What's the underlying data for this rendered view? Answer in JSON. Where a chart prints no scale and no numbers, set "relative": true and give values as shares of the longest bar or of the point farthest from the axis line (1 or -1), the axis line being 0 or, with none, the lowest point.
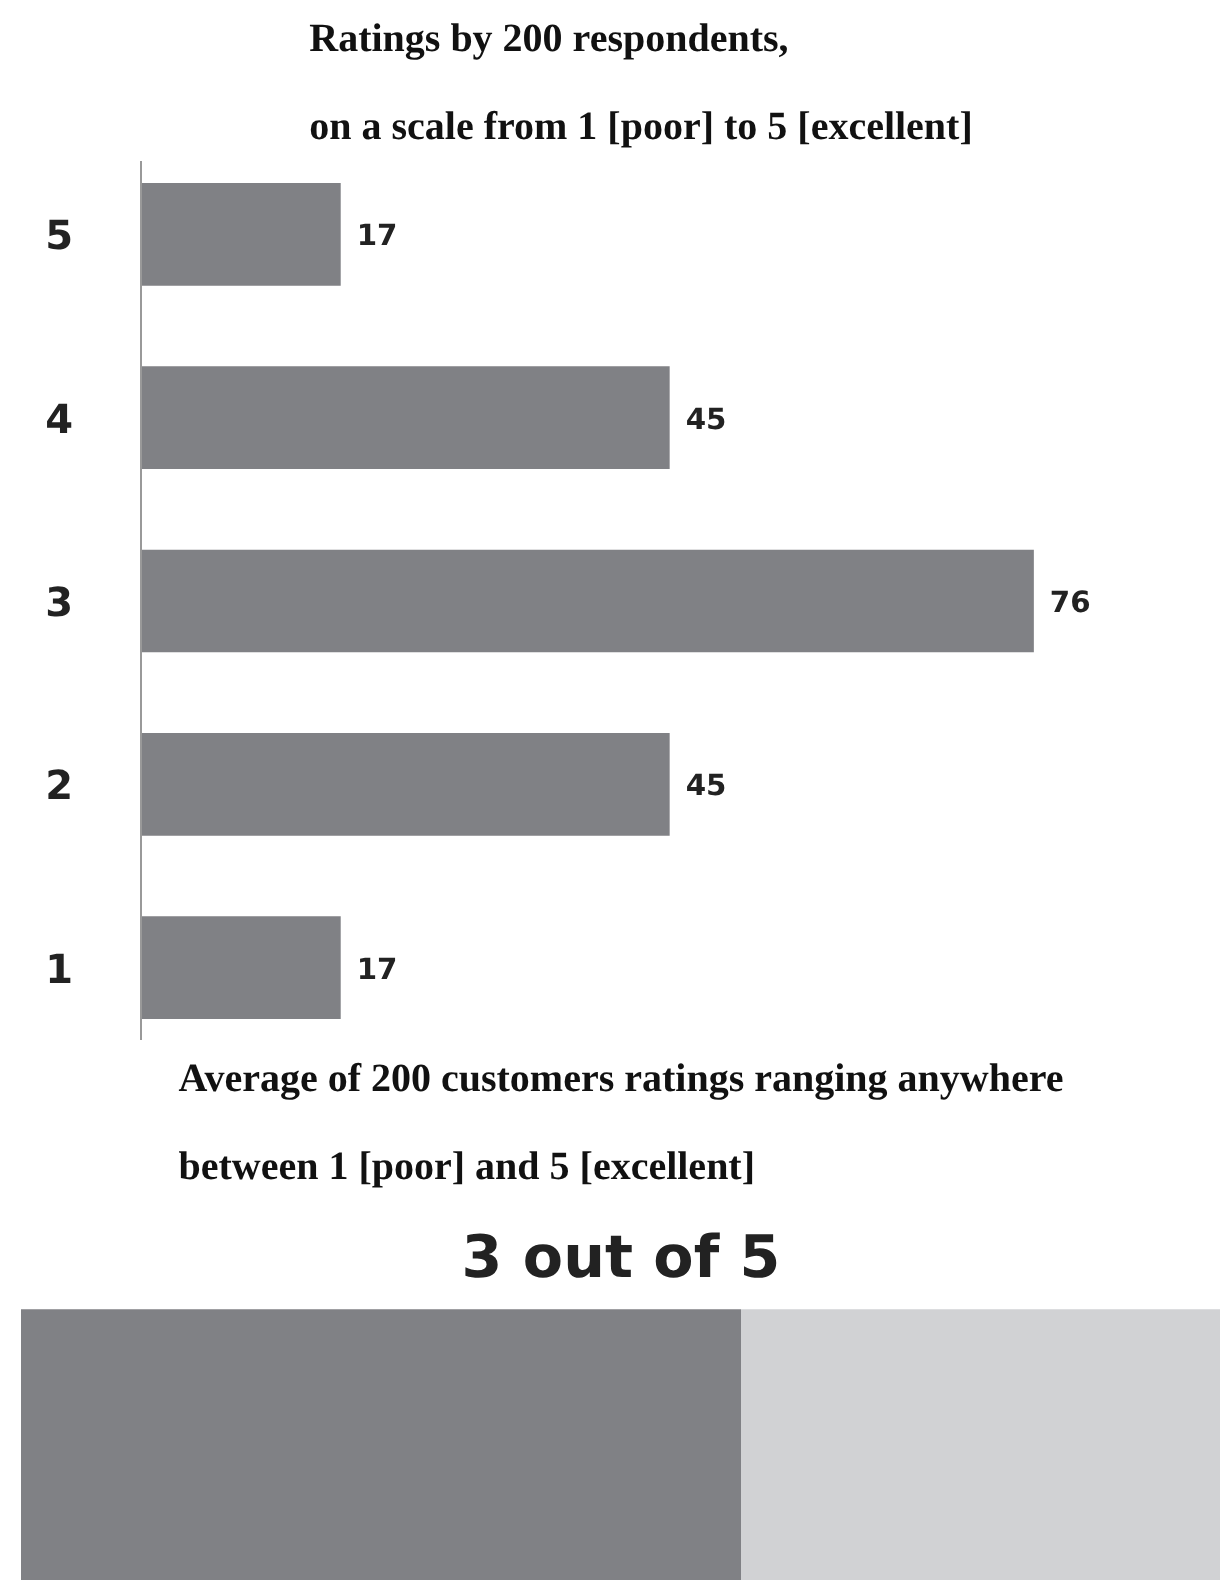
{
  "chart_data": [
    {
      "type": "bar",
      "orientation": "horizontal",
      "title": "Ratings by 200 respondents,\non a scale from 1 [poor] to 5 [excellent]",
      "categories": [
        "5",
        "4",
        "3",
        "2",
        "1"
      ],
      "values": [
        17,
        45,
        76,
        45,
        17
      ],
      "color": "#808185",
      "data_labels": true,
      "grid": false
    },
    {
      "type": "bar",
      "orientation": "horizontal",
      "stacked": true,
      "relative": true,
      "title": "Average of 200 customers ratings ranging anywhere\nbetween 1 [poor] and 5 [excellent]",
      "subtitle": "3 out of 5",
      "categories": [
        null
      ],
      "series": [
        {
          "color": "#808185",
          "values": [
            0.6
          ]
        },
        {
          "color": "#d1d2d4",
          "values": [
            0.4
          ]
        }
      ],
      "grid": false
    }
  ]
}
